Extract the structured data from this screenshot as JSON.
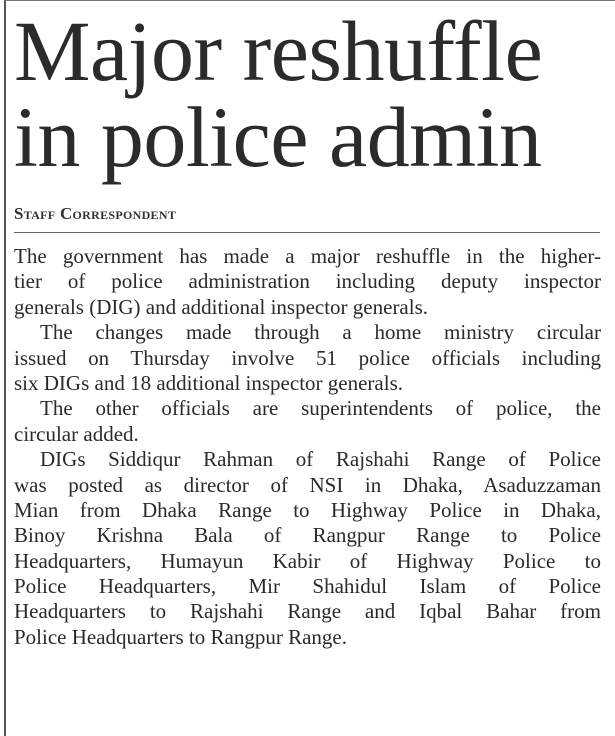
{
  "headline": [
    "Major reshuffle",
    "in police admin"
  ],
  "byline": "Staff Correspondent",
  "paragraphs": [
    [
      "The government has made a major reshuffle in the higher-",
      "tier of police administration including deputy inspector",
      "generals (DIG) and additional inspector generals."
    ],
    [
      "The changes made through a home ministry circular",
      "issued on Thursday involve 51 police officials including",
      "six DIGs and 18 additional inspector generals."
    ],
    [
      "The other officials are superintendents of police, the",
      "circular added."
    ],
    [
      "DIGs Siddiqur Rahman of Rajshahi Range of Police",
      "was posted as director of NSI in Dhaka, Asaduzzaman",
      "Mian from Dhaka Range to Highway Police in Dhaka,",
      "Binoy Krishna Bala of Rangpur Range to Police",
      "Headquarters, Humayun Kabir of Highway Police to",
      "Police Headquarters, Mir Shahidul Islam of Police",
      "Headquarters to Rajshahi Range and Iqbal Bahar from",
      "Police Headquarters to Rangpur Range."
    ]
  ]
}
